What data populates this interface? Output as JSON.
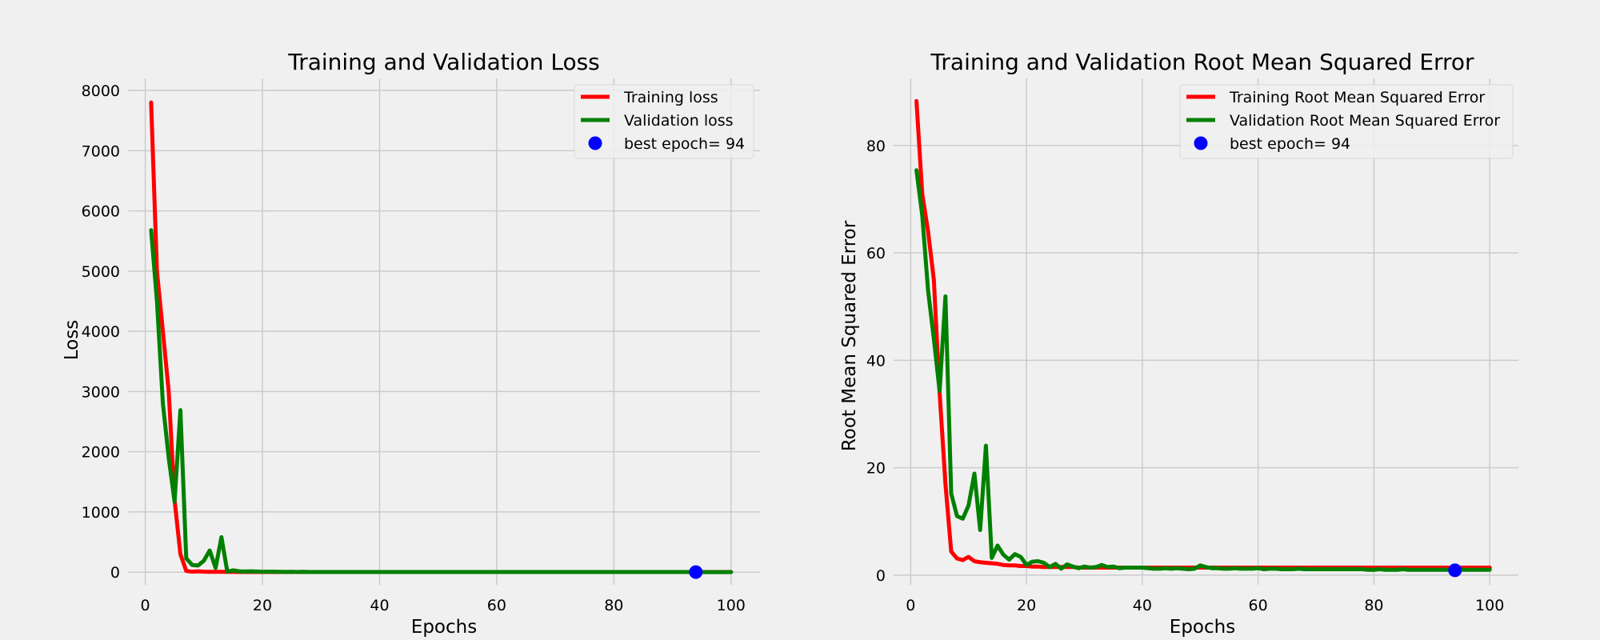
{
  "colors": {
    "background": "#f0f0f0",
    "grid": "#cbcbcb",
    "training": "#ff0000",
    "validation": "#008000",
    "best": "#0000ff"
  },
  "chart_data": [
    {
      "type": "line",
      "title": "Training and Validation Loss",
      "xlabel": "Epochs",
      "ylabel": "Loss",
      "xlim": [
        -2.95,
        104.95
      ],
      "ylim": [
        -210,
        8200
      ],
      "xticks": [
        0,
        20,
        40,
        60,
        80,
        100
      ],
      "yticks": [
        0,
        1000,
        2000,
        3000,
        4000,
        5000,
        6000,
        7000,
        8000
      ],
      "grid": true,
      "legend_position": "top-right",
      "series": [
        {
          "name": "Training loss",
          "color": "#ff0000",
          "x": [
            1,
            2,
            3,
            4,
            5,
            6,
            7,
            8,
            9,
            10,
            11,
            12,
            13,
            14,
            15,
            16,
            17,
            18,
            19,
            20,
            21,
            22,
            23,
            24,
            25,
            26,
            27,
            28,
            29,
            30,
            31,
            32,
            33,
            34,
            35,
            36,
            37,
            38,
            39,
            40,
            41,
            42,
            43,
            44,
            45,
            46,
            47,
            48,
            49,
            50,
            51,
            52,
            53,
            54,
            55,
            56,
            57,
            58,
            59,
            60,
            61,
            62,
            63,
            64,
            65,
            66,
            67,
            68,
            69,
            70,
            71,
            72,
            73,
            74,
            75,
            76,
            77,
            78,
            79,
            80,
            81,
            82,
            83,
            84,
            85,
            86,
            87,
            88,
            89,
            90,
            91,
            92,
            93,
            94,
            95,
            96,
            97,
            98,
            99,
            100
          ],
          "values": [
            7800,
            5000,
            4000,
            3000,
            1200,
            300,
            20,
            8,
            14,
            8,
            6,
            5,
            5,
            4,
            4,
            3,
            3,
            3,
            3,
            3,
            2,
            2,
            2,
            2,
            2,
            2,
            2,
            2,
            2,
            2,
            2,
            2,
            2,
            2,
            2,
            2,
            2,
            2,
            2,
            2,
            2,
            2,
            2,
            2,
            2,
            2,
            2,
            2,
            2,
            2,
            2,
            2,
            2,
            2,
            2,
            2,
            2,
            2,
            2,
            2,
            2,
            2,
            2,
            2,
            2,
            2,
            2,
            2,
            2,
            2,
            2,
            2,
            2,
            2,
            2,
            2,
            2,
            2,
            2,
            2,
            2,
            2,
            2,
            2,
            2,
            2,
            2,
            2,
            2,
            2,
            2,
            2,
            2,
            2,
            2,
            2,
            2,
            2,
            2,
            2
          ]
        },
        {
          "name": "Validation loss",
          "color": "#008000",
          "x": [
            1,
            2,
            3,
            4,
            5,
            6,
            7,
            8,
            9,
            10,
            11,
            12,
            13,
            14,
            15,
            16,
            17,
            18,
            19,
            20,
            21,
            22,
            23,
            24,
            25,
            26,
            27,
            28,
            29,
            30,
            31,
            32,
            33,
            34,
            35,
            36,
            37,
            38,
            39,
            40,
            41,
            42,
            43,
            44,
            45,
            46,
            47,
            48,
            49,
            50,
            51,
            52,
            53,
            54,
            55,
            56,
            57,
            58,
            59,
            60,
            61,
            62,
            63,
            64,
            65,
            66,
            67,
            68,
            69,
            70,
            71,
            72,
            73,
            74,
            75,
            76,
            77,
            78,
            79,
            80,
            81,
            82,
            83,
            84,
            85,
            86,
            87,
            88,
            89,
            90,
            91,
            92,
            93,
            94,
            95,
            96,
            97,
            98,
            99,
            100
          ],
          "values": [
            5680,
            4500,
            2800,
            1900,
            1170,
            2690,
            230,
            120,
            110,
            190,
            360,
            70,
            580,
            10,
            30,
            15,
            10,
            15,
            10,
            5,
            8,
            8,
            6,
            4,
            6,
            3,
            5,
            3,
            3,
            3,
            3,
            3,
            3,
            3,
            2,
            2,
            2,
            2,
            2,
            2,
            2,
            2,
            2,
            2,
            2,
            2,
            2,
            2,
            2,
            3,
            2,
            2,
            2,
            2,
            2,
            2,
            2,
            2,
            2,
            2,
            2,
            2,
            2,
            2,
            2,
            2,
            2,
            2,
            2,
            2,
            2,
            2,
            2,
            2,
            2,
            2,
            2,
            2,
            2,
            2,
            2,
            2,
            2,
            2,
            2,
            2,
            2,
            2,
            2,
            2,
            2,
            2,
            2,
            1,
            1,
            1,
            1,
            1,
            1,
            1
          ]
        }
      ],
      "best_point": {
        "label": "best epoch= 94",
        "x": 94,
        "y": 1
      }
    },
    {
      "type": "line",
      "title": "Training and Validation Root Mean Squared Error",
      "xlabel": "Epochs",
      "ylabel": "Root Mean Squared Error",
      "xlim": [
        -2.95,
        104.95
      ],
      "ylim": [
        -1.8,
        92.5
      ],
      "xticks": [
        0,
        20,
        40,
        60,
        80,
        100
      ],
      "yticks": [
        0,
        20,
        40,
        60,
        80
      ],
      "grid": true,
      "legend_position": "top-right",
      "series": [
        {
          "name": "Training Root Mean Squared Error",
          "color": "#ff0000",
          "x": [
            1,
            2,
            3,
            4,
            5,
            6,
            7,
            8,
            9,
            10,
            11,
            12,
            13,
            14,
            15,
            16,
            17,
            18,
            19,
            20,
            21,
            22,
            23,
            24,
            25,
            26,
            27,
            28,
            29,
            30,
            31,
            32,
            33,
            34,
            35,
            36,
            37,
            38,
            39,
            40,
            41,
            42,
            43,
            44,
            45,
            46,
            47,
            48,
            49,
            50,
            51,
            52,
            53,
            54,
            55,
            56,
            57,
            58,
            59,
            60,
            61,
            62,
            63,
            64,
            65,
            66,
            67,
            68,
            69,
            70,
            71,
            72,
            73,
            74,
            75,
            76,
            77,
            78,
            79,
            80,
            81,
            82,
            83,
            84,
            85,
            86,
            87,
            88,
            89,
            90,
            91,
            92,
            93,
            94,
            95,
            96,
            97,
            98,
            99,
            100
          ],
          "values": [
            88.3,
            71,
            64,
            55,
            34,
            17,
            4.4,
            3.1,
            2.8,
            3.4,
            2.6,
            2.4,
            2.3,
            2.2,
            2.1,
            1.9,
            1.8,
            1.8,
            1.7,
            1.7,
            1.6,
            1.6,
            1.5,
            1.5,
            1.5,
            1.5,
            1.5,
            1.5,
            1.4,
            1.4,
            1.4,
            1.4,
            1.4,
            1.4,
            1.4,
            1.4,
            1.4,
            1.4,
            1.4,
            1.4,
            1.4,
            1.4,
            1.4,
            1.4,
            1.4,
            1.4,
            1.4,
            1.4,
            1.4,
            1.4,
            1.4,
            1.4,
            1.4,
            1.4,
            1.4,
            1.4,
            1.4,
            1.4,
            1.4,
            1.4,
            1.4,
            1.4,
            1.4,
            1.4,
            1.4,
            1.4,
            1.4,
            1.4,
            1.4,
            1.4,
            1.4,
            1.4,
            1.4,
            1.4,
            1.4,
            1.4,
            1.4,
            1.4,
            1.4,
            1.4,
            1.4,
            1.4,
            1.4,
            1.4,
            1.4,
            1.4,
            1.4,
            1.4,
            1.4,
            1.4,
            1.4,
            1.4,
            1.4,
            1.4,
            1.4,
            1.4,
            1.4,
            1.4,
            1.4,
            1.4
          ]
        },
        {
          "name": "Validation Root Mean Squared Error",
          "color": "#008000",
          "x": [
            1,
            2,
            3,
            4,
            5,
            6,
            7,
            8,
            9,
            10,
            11,
            12,
            13,
            14,
            15,
            16,
            17,
            18,
            19,
            20,
            21,
            22,
            23,
            24,
            25,
            26,
            27,
            28,
            29,
            30,
            31,
            32,
            33,
            34,
            35,
            36,
            37,
            38,
            39,
            40,
            41,
            42,
            43,
            44,
            45,
            46,
            47,
            48,
            49,
            50,
            51,
            52,
            53,
            54,
            55,
            56,
            57,
            58,
            59,
            60,
            61,
            62,
            63,
            64,
            65,
            66,
            67,
            68,
            69,
            70,
            71,
            72,
            73,
            74,
            75,
            76,
            77,
            78,
            79,
            80,
            81,
            82,
            83,
            84,
            85,
            86,
            87,
            88,
            89,
            90,
            91,
            92,
            93,
            94,
            95,
            96,
            97,
            98,
            99,
            100
          ],
          "values": [
            75.4,
            67,
            53,
            44,
            34.3,
            51.9,
            15.2,
            11,
            10.5,
            13,
            18.9,
            8.4,
            24.1,
            3.2,
            5.5,
            3.8,
            2.9,
            3.9,
            3.4,
            1.9,
            2.5,
            2.6,
            2.3,
            1.5,
            2.1,
            1.2,
            2,
            1.6,
            1.3,
            1.6,
            1.4,
            1.5,
            1.9,
            1.5,
            1.6,
            1.3,
            1.4,
            1.4,
            1.4,
            1.4,
            1.3,
            1.2,
            1.2,
            1.3,
            1.2,
            1.3,
            1.2,
            1.1,
            1.2,
            1.8,
            1.5,
            1.3,
            1.3,
            1.2,
            1.2,
            1.3,
            1.2,
            1.2,
            1.2,
            1.3,
            1.1,
            1.2,
            1.2,
            1.1,
            1.1,
            1.1,
            1.2,
            1.1,
            1.1,
            1.1,
            1.1,
            1.1,
            1.1,
            1.1,
            1.1,
            1.1,
            1.1,
            1.1,
            1,
            1,
            1.1,
            1,
            1,
            1,
            1.1,
            1,
            1,
            1,
            1,
            1,
            1,
            1,
            1,
            0.9,
            1,
            1,
            1,
            1,
            1,
            1
          ]
        }
      ],
      "best_point": {
        "label": "best epoch= 94",
        "x": 94,
        "y": 0.9
      }
    }
  ]
}
